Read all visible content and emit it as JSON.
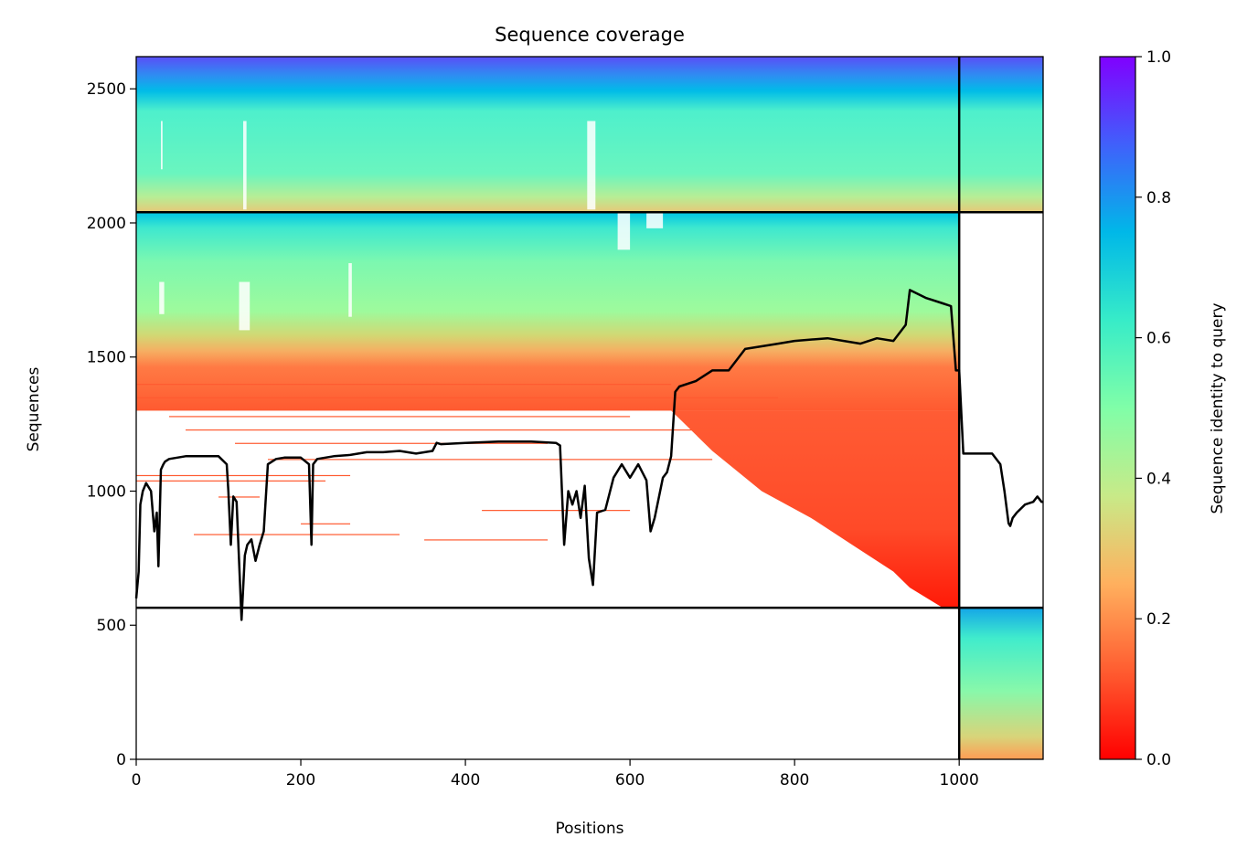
{
  "chart_data": {
    "type": "heatmap",
    "title": "Sequence coverage",
    "xlabel": "Positions",
    "ylabel": "Sequences",
    "xlim": [
      0,
      1102
    ],
    "ylim": [
      0,
      2620
    ],
    "xticks": [
      0,
      200,
      400,
      600,
      800,
      1000
    ],
    "yticks": [
      0,
      500,
      1000,
      1500,
      2000,
      2500
    ],
    "grid": false,
    "colormap": "rainbow",
    "colorbar": {
      "label": "Sequence identity to query",
      "range": [
        0,
        1
      ],
      "ticks": [
        0.0,
        0.2,
        0.4,
        0.6,
        0.8,
        1.0
      ],
      "tick_labels": [
        "0.0",
        "0.2",
        "0.4",
        "0.6",
        "0.8",
        "1.0"
      ]
    },
    "segment_boundaries": {
      "x": [
        1000
      ],
      "y": [
        565,
        2040
      ]
    },
    "blocks": [
      {
        "x": [
          0,
          1000
        ],
        "y": [
          2040,
          2620
        ],
        "identity": [
          0.3,
          0.95
        ],
        "coverage": "full"
      },
      {
        "x": [
          1000,
          1102
        ],
        "y": [
          2040,
          2620
        ],
        "identity": [
          0.3,
          0.95
        ],
        "coverage": "full"
      },
      {
        "x": [
          0,
          1000
        ],
        "y": [
          565,
          2040
        ],
        "identity": [
          0.0,
          0.7
        ],
        "coverage": "partial"
      },
      {
        "x": [
          1000,
          1102
        ],
        "y": [
          0,
          565
        ],
        "identity": [
          0.2,
          0.75
        ],
        "coverage": "full"
      }
    ],
    "coverage_line": {
      "color": "#000000",
      "x": [
        0,
        3,
        5,
        8,
        12,
        18,
        22,
        25,
        27,
        30,
        33,
        35,
        40,
        50,
        60,
        80,
        100,
        110,
        112,
        115,
        118,
        122,
        128,
        132,
        135,
        140,
        145,
        150,
        155,
        160,
        170,
        180,
        200,
        210,
        213,
        215,
        220,
        240,
        260,
        280,
        300,
        320,
        340,
        360,
        365,
        370,
        400,
        440,
        480,
        510,
        515,
        520,
        525,
        530,
        535,
        540,
        545,
        550,
        555,
        560,
        570,
        580,
        590,
        600,
        610,
        620,
        625,
        630,
        640,
        645,
        650,
        655,
        660,
        680,
        700,
        720,
        740,
        760,
        780,
        800,
        840,
        880,
        900,
        920,
        935,
        940,
        960,
        980,
        990,
        996,
        999,
        1000,
        1005,
        1010,
        1040,
        1050,
        1055,
        1060,
        1062,
        1065,
        1070,
        1080,
        1090,
        1095,
        1100,
        1102
      ],
      "y": [
        600,
        700,
        950,
        1000,
        1030,
        1000,
        850,
        920,
        720,
        1080,
        1100,
        1110,
        1120,
        1125,
        1130,
        1130,
        1130,
        1100,
        1000,
        800,
        980,
        960,
        520,
        760,
        800,
        820,
        740,
        800,
        850,
        1100,
        1120,
        1125,
        1125,
        1100,
        800,
        1100,
        1120,
        1130,
        1135,
        1145,
        1145,
        1150,
        1140,
        1150,
        1180,
        1175,
        1180,
        1185,
        1185,
        1180,
        1170,
        800,
        1000,
        950,
        1000,
        900,
        1020,
        750,
        650,
        920,
        930,
        1050,
        1100,
        1050,
        1100,
        1040,
        850,
        900,
        1050,
        1070,
        1130,
        1370,
        1390,
        1410,
        1450,
        1450,
        1530,
        1540,
        1550,
        1560,
        1570,
        1550,
        1570,
        1560,
        1620,
        1750,
        1720,
        1700,
        1690,
        1450,
        1450,
        1450,
        1140,
        1140,
        1140,
        1100,
        1000,
        880,
        870,
        900,
        920,
        950,
        960,
        980,
        960,
        960
      ]
    }
  }
}
